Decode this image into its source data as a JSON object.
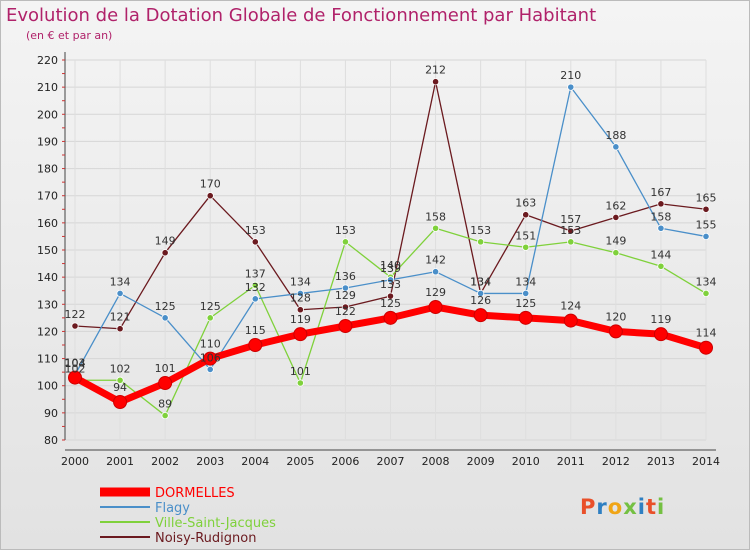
{
  "chart_data": {
    "type": "line",
    "title": "Evolution de la Dotation Globale de Fonctionnement par Habitant",
    "subtitle": "(en € et par an)",
    "categories": [
      "2000",
      "2001",
      "2002",
      "2003",
      "2004",
      "2005",
      "2006",
      "2007",
      "2008",
      "2009",
      "2010",
      "2011",
      "2012",
      "2013",
      "2014"
    ],
    "ylim": [
      80,
      220
    ],
    "yticks": [
      80,
      90,
      100,
      110,
      120,
      130,
      140,
      150,
      160,
      170,
      180,
      190,
      200,
      210,
      220
    ],
    "series": [
      {
        "name": "Noisy-Rudignon",
        "color": "#6b1a1f",
        "values": [
          122,
          121,
          149,
          170,
          153,
          128,
          129,
          133,
          212,
          134,
          163,
          157,
          162,
          167,
          165
        ]
      },
      {
        "name": "Ville-Saint-Jacques",
        "color": "#7fd13b",
        "values": [
          102,
          102,
          89,
          125,
          137,
          101,
          153,
          140,
          158,
          153,
          151,
          153,
          149,
          144,
          134
        ]
      },
      {
        "name": "Flagy",
        "color": "#4a8fc9",
        "values": [
          104,
          134,
          125,
          106,
          132,
          134,
          136,
          139,
          142,
          134,
          134,
          210,
          188,
          158,
          155
        ]
      },
      {
        "name": "DORMELLES",
        "color": "#ff0000",
        "values": [
          103,
          94,
          101,
          110,
          115,
          119,
          122,
          125,
          129,
          126,
          125,
          124,
          120,
          119,
          114
        ]
      }
    ],
    "legend_order": [
      "DORMELLES",
      "Flagy",
      "Ville-Saint-Jacques",
      "Noisy-Rudignon"
    ],
    "brand": "Proxiti"
  }
}
